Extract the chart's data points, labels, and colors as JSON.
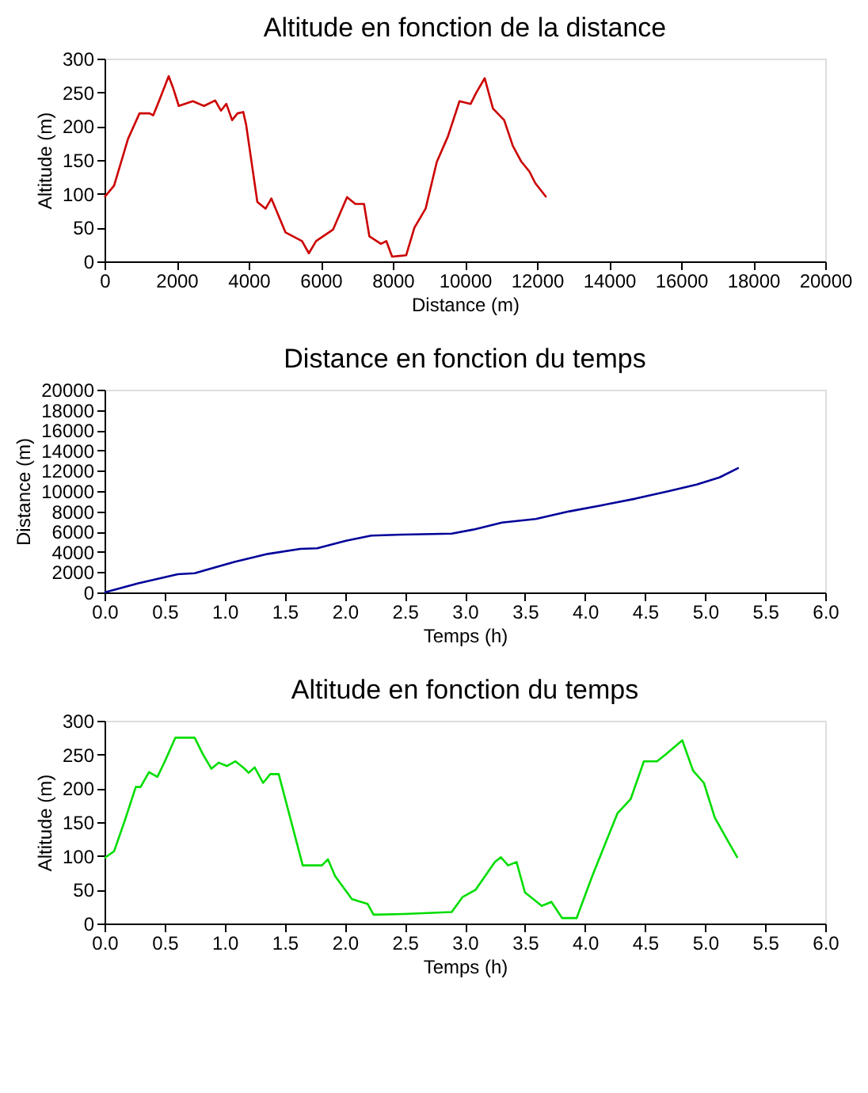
{
  "chart_data": [
    {
      "type": "line",
      "title": "Altitude en fonction de la distance",
      "xlabel": "Distance (m)",
      "ylabel": "Altitude (m)",
      "xlim": [
        0,
        20000
      ],
      "ylim": [
        0,
        300
      ],
      "xticks": [
        0,
        2000,
        4000,
        6000,
        8000,
        10000,
        12000,
        14000,
        16000,
        18000,
        20000
      ],
      "yticks": [
        0,
        50,
        100,
        150,
        200,
        250,
        300
      ],
      "grid": false,
      "x": [
        0,
        265,
        650,
        970,
        1250,
        1350,
        1510,
        1780,
        1900,
        2060,
        2450,
        2760,
        3070,
        3230,
        3380,
        3540,
        3690,
        3850,
        3930,
        4240,
        4470,
        4630,
        5020,
        5480,
        5670,
        5870,
        6340,
        6730,
        6960,
        7200,
        7350,
        7670,
        7820,
        7980,
        8370,
        8600,
        8910,
        9220,
        9530,
        9850,
        10160,
        10320,
        10550,
        10780,
        11090,
        11330,
        11560,
        11790,
        11950,
        12260
      ],
      "series": [
        {
          "color": "#cc0000",
          "values": [
            95,
            112,
            181,
            219,
            219,
            216,
            237,
            274,
            257,
            230,
            237,
            230,
            238,
            223,
            233,
            209,
            219,
            221,
            202,
            88,
            78,
            93,
            43,
            30,
            12,
            30,
            47,
            95,
            85,
            85,
            37,
            26,
            30,
            7,
            9,
            50,
            78,
            147,
            185,
            237,
            233,
            250,
            271,
            226,
            209,
            171,
            148,
            133,
            116,
            95
          ]
        }
      ]
    },
    {
      "type": "line",
      "title": "Distance en fonction du temps",
      "xlabel": "Temps (h)",
      "ylabel": "Distance (m)",
      "xlim": [
        0,
        6
      ],
      "ylim": [
        0,
        20000
      ],
      "xticks": [
        {
          "value": 0,
          "label": "0.0"
        },
        0.5,
        {
          "value": 1,
          "label": "1.0"
        },
        1.5,
        {
          "value": 2,
          "label": "2.0"
        },
        2.5,
        {
          "value": 3,
          "label": "3.0"
        },
        3.5,
        {
          "value": 4,
          "label": "4.0"
        },
        4.5,
        {
          "value": 5,
          "label": "5.0"
        },
        5.5,
        {
          "value": 6,
          "label": "6.0"
        }
      ],
      "yticks": [
        0,
        2000,
        4000,
        6000,
        8000,
        10000,
        12000,
        14000,
        16000,
        18000,
        20000
      ],
      "grid": false,
      "x": [
        0,
        0.28,
        0.61,
        0.75,
        1.08,
        1.36,
        1.63,
        1.77,
        2.01,
        2.22,
        2.47,
        2.89,
        3.07,
        3.31,
        3.59,
        3.87,
        4.14,
        4.42,
        4.7,
        4.93,
        5.12,
        5.28
      ],
      "series": [
        {
          "color": "#000099",
          "values": [
            0,
            900,
            1800,
            1900,
            3000,
            3800,
            4300,
            4350,
            5100,
            5600,
            5700,
            5800,
            6200,
            6900,
            7250,
            8000,
            8600,
            9250,
            10000,
            10650,
            11350,
            12300
          ]
        }
      ]
    },
    {
      "type": "line",
      "title": "Altitude en fonction du temps",
      "xlabel": "Temps (h)",
      "ylabel": "Altitude (m)",
      "xlim": [
        0,
        6
      ],
      "ylim": [
        0,
        300
      ],
      "xticks": [
        {
          "value": 0,
          "label": "0.0"
        },
        0.5,
        {
          "value": 1,
          "label": "1.0"
        },
        1.5,
        {
          "value": 2,
          "label": "2.0"
        },
        2.5,
        {
          "value": 3,
          "label": "3.0"
        },
        3.5,
        {
          "value": 4,
          "label": "4.0"
        },
        4.5,
        {
          "value": 5,
          "label": "5.0"
        },
        5.5,
        {
          "value": 6,
          "label": "6.0"
        }
      ],
      "yticks": [
        0,
        50,
        100,
        150,
        200,
        250,
        300
      ],
      "grid": false,
      "x": [
        0,
        0.08,
        0.17,
        0.26,
        0.3,
        0.37,
        0.44,
        0.5,
        0.59,
        0.75,
        0.82,
        0.89,
        0.95,
        1.02,
        1.09,
        1.16,
        1.2,
        1.25,
        1.32,
        1.38,
        1.45,
        1.65,
        1.81,
        1.86,
        1.92,
        2.06,
        2.19,
        2.24,
        2.49,
        2.89,
        2.98,
        3.09,
        3.25,
        3.3,
        3.36,
        3.43,
        3.5,
        3.64,
        3.72,
        3.81,
        3.93,
        4.06,
        4.27,
        4.38,
        4.49,
        4.6,
        4.67,
        4.81,
        4.9,
        4.99,
        5.08,
        5.19,
        5.27
      ],
      "series": [
        {
          "color": "#00dd00",
          "values": [
            97,
            107,
            153,
            202,
            202,
            224,
            217,
            239,
            275,
            275,
            250,
            229,
            238,
            233,
            240,
            230,
            223,
            231,
            208,
            221,
            221,
            86,
            86,
            95,
            70,
            36,
            29,
            13,
            14,
            17,
            39,
            50,
            91,
            98,
            86,
            91,
            46,
            26,
            32,
            8,
            8,
            70,
            163,
            184,
            240,
            240,
            250,
            271,
            226,
            208,
            157,
            122,
            97
          ]
        }
      ]
    }
  ]
}
